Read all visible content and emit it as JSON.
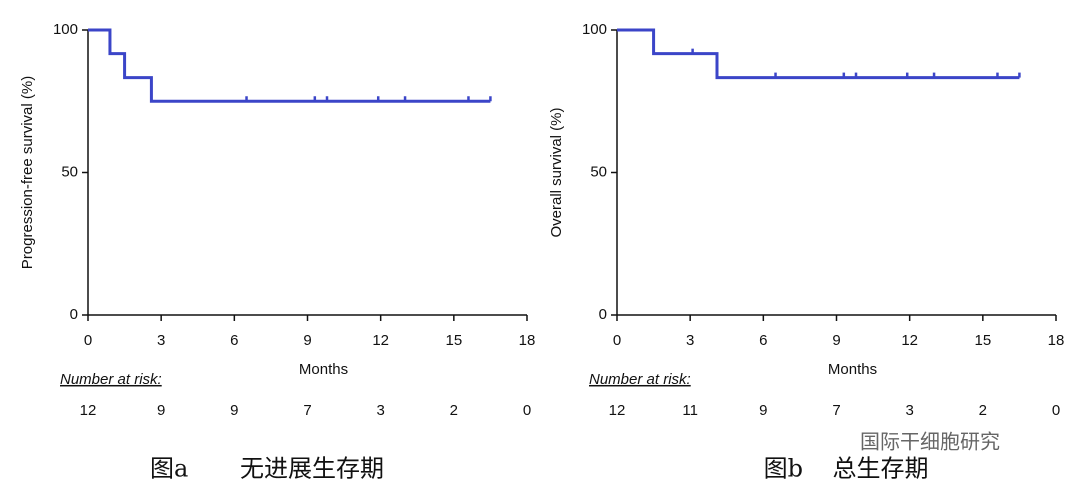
{
  "chart_data": [
    {
      "type": "line",
      "step": true,
      "color": "#3b45c8",
      "ylabel": "Progression-free survival (%)",
      "xlabel": "Months",
      "x": [
        0,
        0.9,
        1.5,
        2.6,
        16.5
      ],
      "values": [
        100,
        91.7,
        83.3,
        75,
        75
      ],
      "censor_x": [
        6.5,
        9.3,
        9.8,
        11.9,
        13,
        15.6,
        16.5
      ],
      "censor_values": [
        75,
        75,
        75,
        75,
        75,
        75,
        75
      ],
      "xlim": [
        0,
        18
      ],
      "xticks": [
        0,
        3,
        6,
        9,
        12,
        15,
        18
      ],
      "ylim": [
        0,
        100
      ],
      "yticks": [
        0,
        50,
        100
      ],
      "risk_label": "Number at risk:",
      "risk_counts": [
        12,
        9,
        9,
        7,
        3,
        2,
        0
      ],
      "caption": "图a",
      "caption_title": "无进展生存期"
    },
    {
      "type": "line",
      "step": true,
      "color": "#3b45c8",
      "ylabel": "Overall survival (%)",
      "xlabel": "Months",
      "x": [
        0,
        1.5,
        4.1,
        16.5
      ],
      "values": [
        100,
        91.7,
        83.3,
        83.3
      ],
      "censor_x": [
        3.1,
        6.5,
        9.3,
        9.8,
        11.9,
        13,
        15.6,
        16.5
      ],
      "censor_values": [
        91.7,
        83.3,
        83.3,
        83.3,
        83.3,
        83.3,
        83.3,
        83.3
      ],
      "xlim": [
        0,
        18
      ],
      "xticks": [
        0,
        3,
        6,
        9,
        12,
        15,
        18
      ],
      "ylim": [
        0,
        100
      ],
      "yticks": [
        0,
        50,
        100
      ],
      "risk_label": "Number at risk:",
      "risk_counts": [
        12,
        11,
        9,
        7,
        3,
        2,
        0
      ],
      "caption": "图b",
      "caption_title": "总生存期"
    }
  ],
  "watermark": "国际干细胞研究"
}
